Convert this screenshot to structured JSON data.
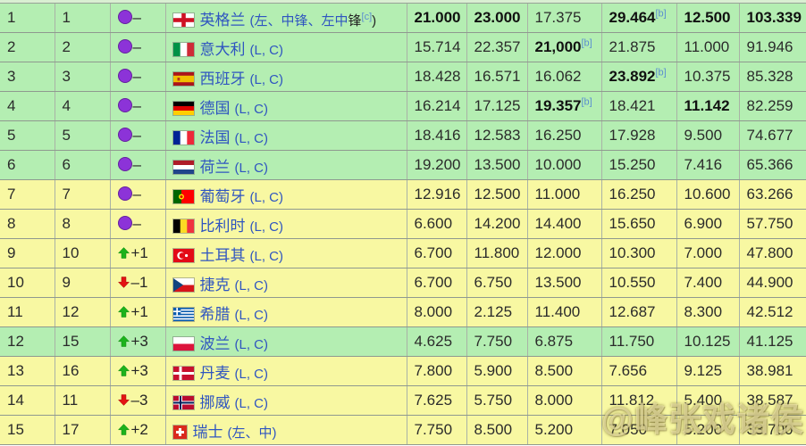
{
  "colors": {
    "row_green": "#b4eeb2",
    "row_yellow": "#f8f8a2",
    "link_blue": "#2f55c0",
    "ref_blue": "#5b8fd0",
    "steady_purple": "#8c33d8",
    "up_green": "#1cb21c",
    "down_red": "#e31313"
  },
  "watermark": {
    "text": "@峰张戏诸侯"
  },
  "table": {
    "rows": [
      {
        "rank": "1",
        "previous": "1",
        "movement": {
          "dir": "steady",
          "label": "–"
        },
        "flag": "england",
        "team": "英格兰",
        "note": {
          "pre": "(左、中锋、左中",
          "dark": "锋",
          "sup": "[c]",
          "close": ")"
        },
        "highlight": "green",
        "scores": [
          {
            "v": "21.000",
            "bold": true
          },
          {
            "v": "23.000",
            "bold": true
          },
          {
            "v": "17.375"
          },
          {
            "v": "29.464",
            "bold": true,
            "sup": "[b]"
          },
          {
            "v": "12.500",
            "bold": true
          },
          {
            "v": "103.339",
            "bold": true
          }
        ]
      },
      {
        "rank": "2",
        "previous": "2",
        "movement": {
          "dir": "steady",
          "label": "–"
        },
        "flag": "italy",
        "team": "意大利",
        "note": {
          "pre": "(L, C)"
        },
        "highlight": "green",
        "scores": [
          {
            "v": "15.714"
          },
          {
            "v": "22.357"
          },
          {
            "v": "21,000",
            "bold": true,
            "sup": "[b]"
          },
          {
            "v": "21.875"
          },
          {
            "v": "11.000"
          },
          {
            "v": "91.946"
          }
        ]
      },
      {
        "rank": "3",
        "previous": "3",
        "movement": {
          "dir": "steady",
          "label": "–"
        },
        "flag": "spain",
        "team": "西班牙",
        "note": {
          "pre": "(L, C)"
        },
        "highlight": "green",
        "scores": [
          {
            "v": "18.428"
          },
          {
            "v": "16.571"
          },
          {
            "v": "16.062"
          },
          {
            "v": "23.892",
            "bold": true,
            "sup": "[b]"
          },
          {
            "v": "10.375"
          },
          {
            "v": "85.328"
          }
        ]
      },
      {
        "rank": "4",
        "previous": "4",
        "movement": {
          "dir": "steady",
          "label": "–"
        },
        "flag": "germany",
        "team": "德国",
        "note": {
          "pre": "(L, C)"
        },
        "highlight": "green",
        "scores": [
          {
            "v": "16.214"
          },
          {
            "v": "17.125"
          },
          {
            "v": "19.357",
            "bold": true,
            "sup": "[b]"
          },
          {
            "v": "18.421"
          },
          {
            "v": "11.142",
            "bold": true
          },
          {
            "v": "82.259"
          }
        ]
      },
      {
        "rank": "5",
        "previous": "5",
        "movement": {
          "dir": "steady",
          "label": "–"
        },
        "flag": "france",
        "team": "法国",
        "note": {
          "pre": "(L, C)"
        },
        "highlight": "green",
        "scores": [
          {
            "v": "18.416"
          },
          {
            "v": "12.583"
          },
          {
            "v": "16.250"
          },
          {
            "v": "17.928"
          },
          {
            "v": "9.500"
          },
          {
            "v": "74.677"
          }
        ]
      },
      {
        "rank": "6",
        "previous": "6",
        "movement": {
          "dir": "steady",
          "label": "–"
        },
        "flag": "netherlands",
        "team": "荷兰",
        "note": {
          "pre": "(L, C)"
        },
        "highlight": "green",
        "scores": [
          {
            "v": "19.200"
          },
          {
            "v": "13.500"
          },
          {
            "v": "10.000"
          },
          {
            "v": "15.250"
          },
          {
            "v": "7.416"
          },
          {
            "v": "65.366"
          }
        ]
      },
      {
        "rank": "7",
        "previous": "7",
        "movement": {
          "dir": "steady",
          "label": "–"
        },
        "flag": "portugal",
        "team": "葡萄牙",
        "note": {
          "pre": "(L, C)"
        },
        "highlight": "yellow",
        "scores": [
          {
            "v": "12.916"
          },
          {
            "v": "12.500"
          },
          {
            "v": "11.000"
          },
          {
            "v": "16.250"
          },
          {
            "v": "10.600"
          },
          {
            "v": "63.266"
          }
        ]
      },
      {
        "rank": "8",
        "previous": "8",
        "movement": {
          "dir": "steady",
          "label": "–"
        },
        "flag": "belgium",
        "team": "比利时",
        "note": {
          "pre": "(L, C)"
        },
        "highlight": "yellow",
        "scores": [
          {
            "v": "6.600"
          },
          {
            "v": "14.200"
          },
          {
            "v": "14.400"
          },
          {
            "v": "15.650"
          },
          {
            "v": "6.900"
          },
          {
            "v": "57.750"
          }
        ]
      },
      {
        "rank": "9",
        "previous": "10",
        "movement": {
          "dir": "up",
          "label": "+1"
        },
        "flag": "turkey",
        "team": "土耳其",
        "note": {
          "pre": "(L, C)"
        },
        "highlight": "yellow",
        "scores": [
          {
            "v": "6.700"
          },
          {
            "v": "11.800"
          },
          {
            "v": "12.000"
          },
          {
            "v": "10.300"
          },
          {
            "v": "7.000"
          },
          {
            "v": "47.800"
          }
        ]
      },
      {
        "rank": "10",
        "previous": "9",
        "movement": {
          "dir": "down",
          "label": "–1"
        },
        "flag": "czech",
        "team": "捷克",
        "note": {
          "pre": "(L, C)"
        },
        "highlight": "yellow",
        "scores": [
          {
            "v": "6.700"
          },
          {
            "v": "6.750"
          },
          {
            "v": "13.500"
          },
          {
            "v": "10.550"
          },
          {
            "v": "7.400"
          },
          {
            "v": "44.900"
          }
        ]
      },
      {
        "rank": "11",
        "previous": "12",
        "movement": {
          "dir": "up",
          "label": "+1"
        },
        "flag": "greece",
        "team": "希腊",
        "note": {
          "pre": "(L, C)"
        },
        "highlight": "yellow",
        "scores": [
          {
            "v": "8.000"
          },
          {
            "v": "2.125"
          },
          {
            "v": "11.400"
          },
          {
            "v": "12.687"
          },
          {
            "v": "8.300"
          },
          {
            "v": "42.512"
          }
        ]
      },
      {
        "rank": "12",
        "previous": "15",
        "movement": {
          "dir": "up",
          "label": "+3"
        },
        "flag": "poland",
        "team": "波兰",
        "note": {
          "pre": "(L, C)"
        },
        "highlight": "green",
        "scores": [
          {
            "v": "4.625"
          },
          {
            "v": "7.750"
          },
          {
            "v": "6.875"
          },
          {
            "v": "11.750"
          },
          {
            "v": "10.125"
          },
          {
            "v": "41.125"
          }
        ]
      },
      {
        "rank": "13",
        "previous": "16",
        "movement": {
          "dir": "up",
          "label": "+3"
        },
        "flag": "denmark",
        "team": "丹麦",
        "note": {
          "pre": "(L, C)"
        },
        "highlight": "yellow",
        "scores": [
          {
            "v": "7.800"
          },
          {
            "v": "5.900"
          },
          {
            "v": "8.500"
          },
          {
            "v": "7.656"
          },
          {
            "v": "9.125"
          },
          {
            "v": "38.981"
          }
        ]
      },
      {
        "rank": "14",
        "previous": "11",
        "movement": {
          "dir": "down",
          "label": "–3"
        },
        "flag": "norway",
        "team": "挪威",
        "note": {
          "pre": "(L, C)"
        },
        "highlight": "yellow",
        "scores": [
          {
            "v": "7.625"
          },
          {
            "v": "5.750"
          },
          {
            "v": "8.000"
          },
          {
            "v": "11.812"
          },
          {
            "v": "5.400"
          },
          {
            "v": "38.587"
          }
        ]
      },
      {
        "rank": "15",
        "previous": "17",
        "movement": {
          "dir": "up",
          "label": "+2"
        },
        "flag": "switzerland",
        "team": "瑞士",
        "note": {
          "pre": "(左、中)"
        },
        "highlight": "yellow",
        "scores": [
          {
            "v": "7.750"
          },
          {
            "v": "8.500"
          },
          {
            "v": "5.200"
          },
          {
            "v": "7.050"
          },
          {
            "v": "5.200"
          },
          {
            "v": "33.700"
          }
        ]
      }
    ]
  }
}
